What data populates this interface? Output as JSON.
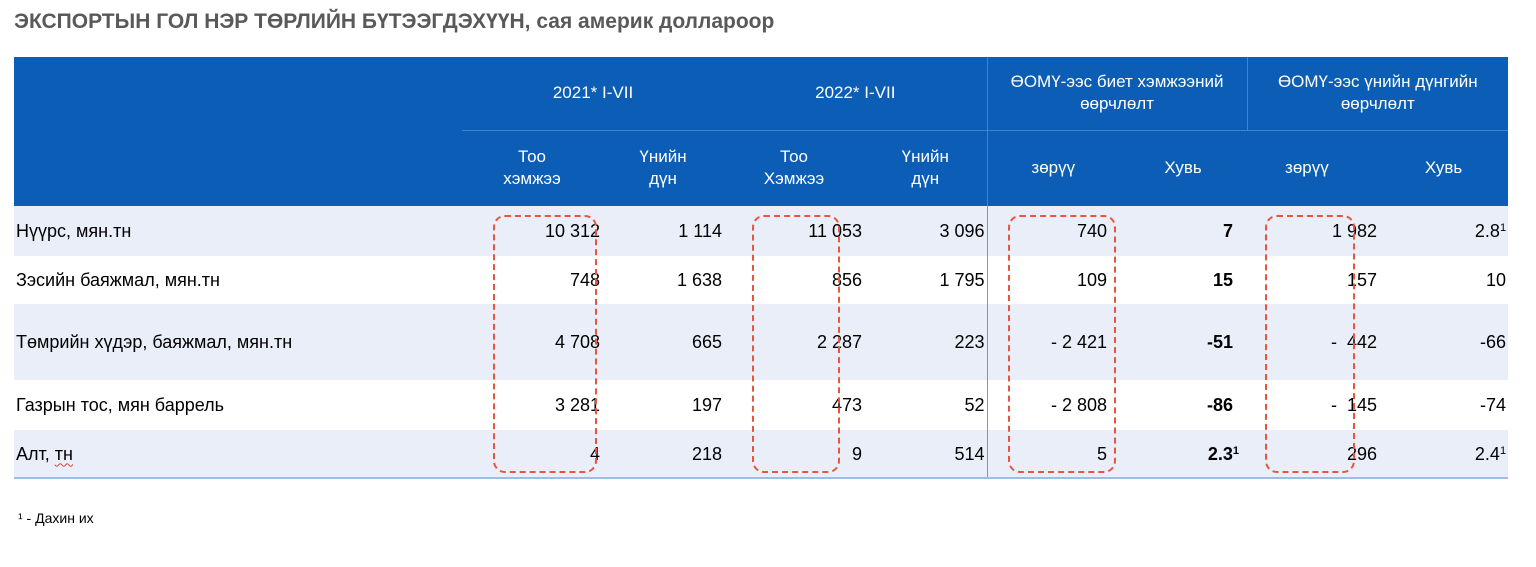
{
  "title": "ЭКСПОРТЫН ГОЛ НЭР ТӨРЛИЙН БҮТЭЭГДЭХҮҮН, сая америк доллароор",
  "header": {
    "groups": [
      "2021* I-VII",
      "2022* I-VII",
      "ӨОМҮ-ээс биет хэмжээний өөрчлөлт",
      "ӨОМҮ-ээс үнийн дүнгийн өөрчлөлт"
    ],
    "subheaders": [
      "Тоо хэмжээ",
      "Үнийн дүн",
      "Тоо Хэмжээ",
      "Үнийн дүн",
      "зөрүү",
      "Хувь",
      "зөрүү",
      "Хувь"
    ]
  },
  "rows": [
    {
      "label": "Нүүрс, мян.тн",
      "values": [
        "10 312",
        "1 114",
        "11 053",
        "3 096",
        "740",
        "7",
        "1 982",
        "2.8"
      ],
      "sup": [
        "",
        "",
        "",
        "",
        "",
        "",
        "",
        "1"
      ]
    },
    {
      "label": "Зэсийн баяжмал, мян.тн",
      "values": [
        "748",
        "1 638",
        "856",
        "1 795",
        "109",
        "15",
        "157",
        "10"
      ],
      "sup": [
        "",
        "",
        "",
        "",
        "",
        "",
        "",
        ""
      ]
    },
    {
      "label": "Төмрийн хүдэр, баяжмал, мян.тн",
      "values": [
        "4 708",
        "665",
        "2 287",
        "223",
        "- 2 421",
        "-51",
        "-  442",
        "-66"
      ],
      "sup": [
        "",
        "",
        "",
        "",
        "",
        "",
        "",
        ""
      ]
    },
    {
      "label": "Газрын тос, мян баррель",
      "values": [
        "3 281",
        "197",
        "473",
        "52",
        "- 2 808",
        "-86",
        "-  145",
        "-74"
      ],
      "sup": [
        "",
        "",
        "",
        "",
        "",
        "",
        "",
        ""
      ]
    },
    {
      "label_main": "Алт, ",
      "label_wavy": "тн",
      "values": [
        "4",
        "218",
        "9",
        "514",
        "5",
        "2.3",
        "296",
        "2.4"
      ],
      "sup": [
        "",
        "",
        "",
        "",
        "",
        "1",
        "",
        "1"
      ]
    }
  ],
  "footnote": "¹ - Дахин их",
  "colors": {
    "header_bg": "#0b5db5",
    "row_alt_bg": "#e9eef8",
    "highlight_dash": "#e8553f"
  }
}
